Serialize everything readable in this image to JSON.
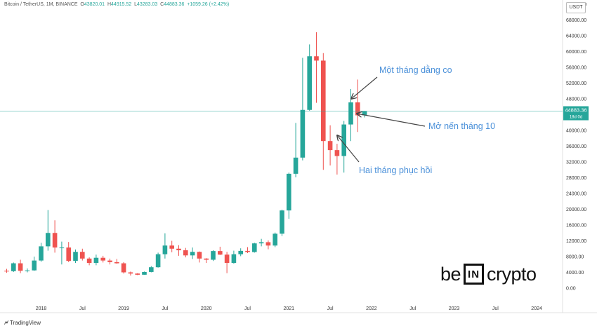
{
  "header": {
    "symbol": "Bitcoin / TetherUS, 1M, BINANCE",
    "open_label": "O",
    "open": "43820.01",
    "high_label": "H",
    "high": "44915.52",
    "low_label": "L",
    "low": "43283.03",
    "close_label": "C",
    "close": "44883.36",
    "change": "+1059.26 (+2.42%)"
  },
  "unit": "USDT",
  "current_price": {
    "value": "44883.36",
    "countdown": "18d 0d",
    "price": 44883.36
  },
  "branding": {
    "tradingview": "TradingView",
    "logo_be": "be",
    "logo_in": "IN",
    "logo_crypto": "crypto"
  },
  "colors": {
    "up": "#26a69a",
    "down": "#ef5350",
    "annotation": "#4a90d9",
    "price_line": "#26a69a"
  },
  "annotations": [
    {
      "text": "Một tháng dằng co"
    },
    {
      "text": "Mở nến tháng 10"
    },
    {
      "text": "Hai tháng phục hồi"
    }
  ],
  "chart_data": {
    "type": "candlestick",
    "interval": "1M",
    "y_ticks": [
      "0.00",
      "4000.00",
      "8000.00",
      "12000.00",
      "16000.00",
      "20000.00",
      "24000.00",
      "28000.00",
      "32000.00",
      "36000.00",
      "40000.00",
      "44000.00",
      "48000.00",
      "52000.00",
      "56000.00",
      "60000.00",
      "64000.00",
      "68000.00",
      "72000.00"
    ],
    "ylim": [
      -2000,
      72500
    ],
    "x_labels": [
      "2018",
      "Jul",
      "2019",
      "Jul",
      "2020",
      "Jul",
      "2021",
      "Jul",
      "2022",
      "Jul",
      "2023",
      "Jul",
      "2024"
    ],
    "x_label_months": [
      0,
      6,
      12,
      18,
      24,
      30,
      36,
      42,
      48,
      54,
      60,
      66,
      72
    ],
    "grid": false,
    "candles": [
      {
        "t": -5,
        "o": 4400,
        "h": 4900,
        "l": 3900,
        "c": 4300
      },
      {
        "t": -4,
        "o": 4300,
        "h": 6500,
        "l": 4100,
        "c": 6300
      },
      {
        "t": -3,
        "o": 6300,
        "h": 7200,
        "l": 3800,
        "c": 4400
      },
      {
        "t": -2,
        "o": 4400,
        "h": 5000,
        "l": 4000,
        "c": 4500
      },
      {
        "t": -1,
        "o": 4500,
        "h": 8000,
        "l": 4400,
        "c": 7000
      },
      {
        "t": 0,
        "o": 7000,
        "h": 11500,
        "l": 6700,
        "c": 10600
      },
      {
        "t": 1,
        "o": 10600,
        "h": 19800,
        "l": 9500,
        "c": 14000
      },
      {
        "t": 2,
        "o": 14000,
        "h": 17200,
        "l": 9000,
        "c": 10300
      },
      {
        "t": 3,
        "o": 10300,
        "h": 11800,
        "l": 6000,
        "c": 10300
      },
      {
        "t": 4,
        "o": 10300,
        "h": 11700,
        "l": 6600,
        "c": 6900
      },
      {
        "t": 5,
        "o": 6900,
        "h": 9800,
        "l": 6400,
        "c": 9200
      },
      {
        "t": 6,
        "o": 9200,
        "h": 10000,
        "l": 7000,
        "c": 7500
      },
      {
        "t": 7,
        "o": 7500,
        "h": 7800,
        "l": 5800,
        "c": 6400
      },
      {
        "t": 8,
        "o": 6400,
        "h": 8500,
        "l": 5800,
        "c": 7700
      },
      {
        "t": 9,
        "o": 7700,
        "h": 8200,
        "l": 6500,
        "c": 7000
      },
      {
        "t": 10,
        "o": 7000,
        "h": 7500,
        "l": 6000,
        "c": 6600
      },
      {
        "t": 11,
        "o": 6600,
        "h": 7400,
        "l": 6200,
        "c": 6300
      },
      {
        "t": 12,
        "o": 6300,
        "h": 6600,
        "l": 3700,
        "c": 4000
      },
      {
        "t": 13,
        "o": 4000,
        "h": 4200,
        "l": 3200,
        "c": 3700
      },
      {
        "t": 14,
        "o": 3700,
        "h": 3800,
        "l": 3300,
        "c": 3400
      },
      {
        "t": 15,
        "o": 3400,
        "h": 4200,
        "l": 3400,
        "c": 4100
      },
      {
        "t": 16,
        "o": 4100,
        "h": 5600,
        "l": 4000,
        "c": 5300
      },
      {
        "t": 17,
        "o": 5300,
        "h": 9000,
        "l": 5200,
        "c": 8600
      },
      {
        "t": 18,
        "o": 8600,
        "h": 13900,
        "l": 7500,
        "c": 10800
      },
      {
        "t": 19,
        "o": 10800,
        "h": 12000,
        "l": 9100,
        "c": 10000
      },
      {
        "t": 20,
        "o": 10000,
        "h": 10900,
        "l": 8200,
        "c": 9600
      },
      {
        "t": 21,
        "o": 9600,
        "h": 10200,
        "l": 7800,
        "c": 8300
      },
      {
        "t": 22,
        "o": 8300,
        "h": 10300,
        "l": 7400,
        "c": 9200
      },
      {
        "t": 23,
        "o": 9200,
        "h": 9300,
        "l": 6500,
        "c": 7500
      },
      {
        "t": 24,
        "o": 7500,
        "h": 7600,
        "l": 6400,
        "c": 7200
      },
      {
        "t": 25,
        "o": 7200,
        "h": 9600,
        "l": 6900,
        "c": 9400
      },
      {
        "t": 26,
        "o": 9400,
        "h": 10500,
        "l": 8400,
        "c": 8500
      },
      {
        "t": 27,
        "o": 8500,
        "h": 9200,
        "l": 3800,
        "c": 6400
      },
      {
        "t": 28,
        "o": 6400,
        "h": 9500,
        "l": 6200,
        "c": 8600
      },
      {
        "t": 29,
        "o": 8600,
        "h": 10100,
        "l": 8100,
        "c": 9450
      },
      {
        "t": 30,
        "o": 9450,
        "h": 10400,
        "l": 8900,
        "c": 9150
      },
      {
        "t": 31,
        "o": 9150,
        "h": 11500,
        "l": 9000,
        "c": 11350
      },
      {
        "t": 32,
        "o": 11350,
        "h": 12500,
        "l": 10600,
        "c": 11650
      },
      {
        "t": 33,
        "o": 11650,
        "h": 12100,
        "l": 9850,
        "c": 10800
      },
      {
        "t": 34,
        "o": 10800,
        "h": 14100,
        "l": 10400,
        "c": 13800
      },
      {
        "t": 35,
        "o": 13800,
        "h": 19900,
        "l": 13200,
        "c": 19700
      },
      {
        "t": 36,
        "o": 19700,
        "h": 29300,
        "l": 17600,
        "c": 29000
      },
      {
        "t": 37,
        "o": 29000,
        "h": 41900,
        "l": 28100,
        "c": 33100
      },
      {
        "t": 38,
        "o": 33100,
        "h": 58400,
        "l": 32400,
        "c": 45200
      },
      {
        "t": 39,
        "o": 45200,
        "h": 61800,
        "l": 45000,
        "c": 58800
      },
      {
        "t": 40,
        "o": 58800,
        "h": 64900,
        "l": 47000,
        "c": 57700
      },
      {
        "t": 41,
        "o": 57700,
        "h": 59600,
        "l": 30000,
        "c": 37300
      },
      {
        "t": 42,
        "o": 37300,
        "h": 41300,
        "l": 31100,
        "c": 35000
      },
      {
        "t": 43,
        "o": 35000,
        "h": 36600,
        "l": 28800,
        "c": 33500
      },
      {
        "t": 44,
        "o": 33500,
        "h": 42400,
        "l": 29300,
        "c": 41500
      },
      {
        "t": 45,
        "o": 41500,
        "h": 50500,
        "l": 37300,
        "c": 47100
      },
      {
        "t": 46,
        "o": 47100,
        "h": 52900,
        "l": 39600,
        "c": 43820
      },
      {
        "t": 47,
        "o": 43820,
        "h": 44915,
        "l": 43283,
        "c": 44883
      }
    ]
  }
}
